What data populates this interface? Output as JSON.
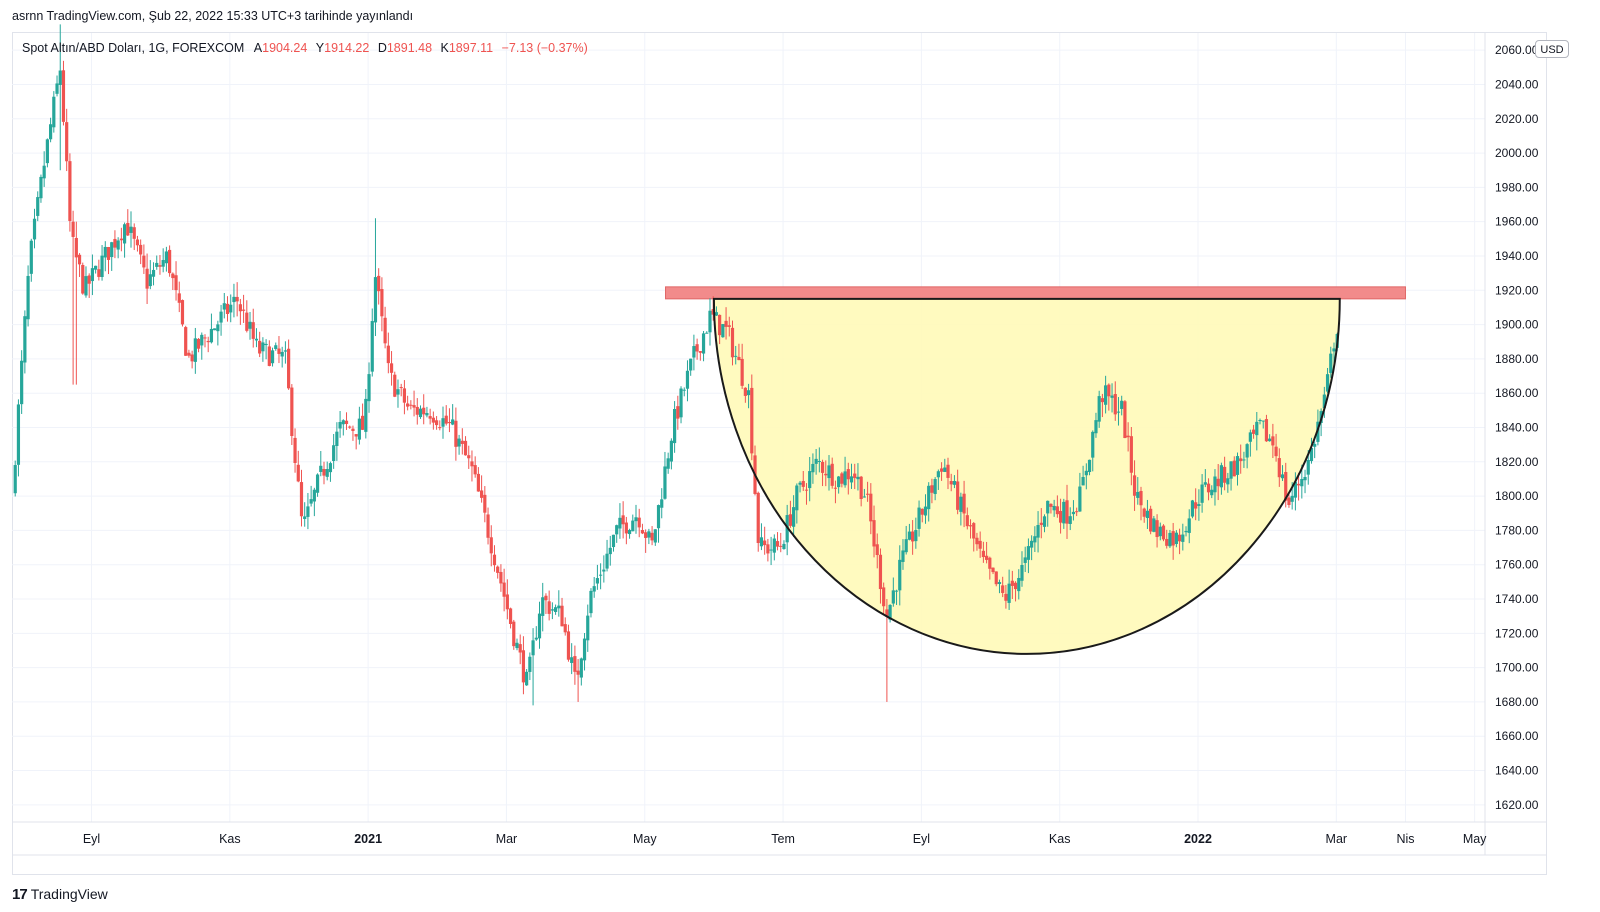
{
  "header": {
    "published_line": "asrnn TradingView.com, Şub 22, 2022 15:33 UTC+3 tarihinde yayınlandı"
  },
  "legend": {
    "symbol": "Spot Altın/ABD Doları, 1G, FOREXCOM",
    "open_label": "A",
    "open": "1904.24",
    "high_label": "Y",
    "high": "1914.22",
    "low_label": "D",
    "low": "1891.48",
    "close_label": "K",
    "close": "1897.11",
    "change": "−7.13 (−0.37%)"
  },
  "currency_badge": "USD",
  "footer": {
    "brand": "TradingView",
    "logo_mark": "17"
  },
  "colors": {
    "up": "#26a69a",
    "down": "#ef5350",
    "resistance_band": "#f28b8b",
    "cup_fill": "#fff9b8",
    "cup_stroke": "#1a1a1a",
    "grid": "#f0f3fa"
  },
  "chart_data": {
    "type": "candlestick",
    "ylim": [
      1610,
      2070
    ],
    "y_ticks": [
      "1620.00",
      "1640.00",
      "1660.00",
      "1680.00",
      "1700.00",
      "1720.00",
      "1740.00",
      "1760.00",
      "1780.00",
      "1800.00",
      "1820.00",
      "1840.00",
      "1860.00",
      "1880.00",
      "1900.00",
      "1920.00",
      "1940.00",
      "1960.00",
      "1980.00",
      "2000.00",
      "2020.00",
      "2040.00",
      "2060.00"
    ],
    "x_ticks": [
      {
        "label": "Eyl",
        "month": 1,
        "bold": false
      },
      {
        "label": "Kas",
        "month": 3,
        "bold": false
      },
      {
        "label": "2021",
        "month": 5,
        "bold": true
      },
      {
        "label": "Mar",
        "month": 7,
        "bold": false
      },
      {
        "label": "May",
        "month": 9,
        "bold": false
      },
      {
        "label": "Tem",
        "month": 11,
        "bold": false
      },
      {
        "label": "Eyl",
        "month": 13,
        "bold": false
      },
      {
        "label": "Kas",
        "month": 15,
        "bold": false
      },
      {
        "label": "2022",
        "month": 17,
        "bold": true
      },
      {
        "label": "Mar",
        "month": 19,
        "bold": false
      },
      {
        "label": "Nis",
        "month": 20,
        "bold": false
      },
      {
        "label": "May",
        "month": 21,
        "bold": false
      }
    ],
    "x_range_months": [
      -0.15,
      21.15
    ],
    "close_path": [
      [
        -0.15,
        1800
      ],
      [
        0.1,
        1935
      ],
      [
        0.3,
        1990
      ],
      [
        0.55,
        2050
      ],
      [
        0.7,
        1950
      ],
      [
        0.9,
        1920
      ],
      [
        1.2,
        1940
      ],
      [
        1.5,
        1960
      ],
      [
        1.8,
        1925
      ],
      [
        2.1,
        1940
      ],
      [
        2.4,
        1880
      ],
      [
        2.8,
        1900
      ],
      [
        3.1,
        1915
      ],
      [
        3.4,
        1885
      ],
      [
        3.8,
        1880
      ],
      [
        4.05,
        1780
      ],
      [
        4.3,
        1810
      ],
      [
        4.6,
        1840
      ],
      [
        4.95,
        1840
      ],
      [
        5.1,
        1930
      ],
      [
        5.3,
        1870
      ],
      [
        5.6,
        1850
      ],
      [
        5.9,
        1850
      ],
      [
        6.2,
        1840
      ],
      [
        6.5,
        1815
      ],
      [
        6.8,
        1770
      ],
      [
        7.1,
        1720
      ],
      [
        7.3,
        1690
      ],
      [
        7.5,
        1740
      ],
      [
        7.8,
        1730
      ],
      [
        8.0,
        1690
      ],
      [
        8.2,
        1740
      ],
      [
        8.6,
        1780
      ],
      [
        8.9,
        1790
      ],
      [
        9.1,
        1770
      ],
      [
        9.4,
        1840
      ],
      [
        9.7,
        1880
      ],
      [
        9.95,
        1905
      ],
      [
        10.2,
        1895
      ],
      [
        10.5,
        1860
      ],
      [
        10.65,
        1770
      ],
      [
        10.95,
        1770
      ],
      [
        11.2,
        1800
      ],
      [
        11.5,
        1820
      ],
      [
        11.8,
        1810
      ],
      [
        12.0,
        1815
      ],
      [
        12.2,
        1800
      ],
      [
        12.5,
        1730
      ],
      [
        12.7,
        1760
      ],
      [
        13.0,
        1790
      ],
      [
        13.3,
        1820
      ],
      [
        13.6,
        1790
      ],
      [
        13.9,
        1760
      ],
      [
        14.2,
        1740
      ],
      [
        14.5,
        1760
      ],
      [
        14.8,
        1795
      ],
      [
        15.1,
        1790
      ],
      [
        15.3,
        1800
      ],
      [
        15.6,
        1860
      ],
      [
        15.9,
        1850
      ],
      [
        16.1,
        1800
      ],
      [
        16.4,
        1780
      ],
      [
        16.7,
        1775
      ],
      [
        17.0,
        1800
      ],
      [
        17.3,
        1810
      ],
      [
        17.6,
        1820
      ],
      [
        17.9,
        1840
      ],
      [
        18.1,
        1830
      ],
      [
        18.3,
        1795
      ],
      [
        18.6,
        1820
      ],
      [
        18.85,
        1860
      ],
      [
        19.0,
        1900
      ],
      [
        19.05,
        1898
      ]
    ],
    "highlight_spikes": [
      {
        "month": 0.55,
        "high": 2075,
        "low": 1990
      },
      {
        "month": 0.75,
        "high": 1960,
        "low": 1865
      },
      {
        "month": 5.1,
        "high": 1962,
        "low": 1900
      },
      {
        "month": 12.5,
        "high": 1740,
        "low": 1680
      },
      {
        "month": 7.4,
        "high": 1710,
        "low": 1678
      },
      {
        "month": 8.05,
        "high": 1705,
        "low": 1680
      }
    ],
    "resistance_band": {
      "start_month": 9.3,
      "end_month": 20.0,
      "low": 1915,
      "high": 1922
    },
    "cup": {
      "start_month": 10.0,
      "end_month": 19.05,
      "top": 1915,
      "bottom": 1708
    }
  }
}
